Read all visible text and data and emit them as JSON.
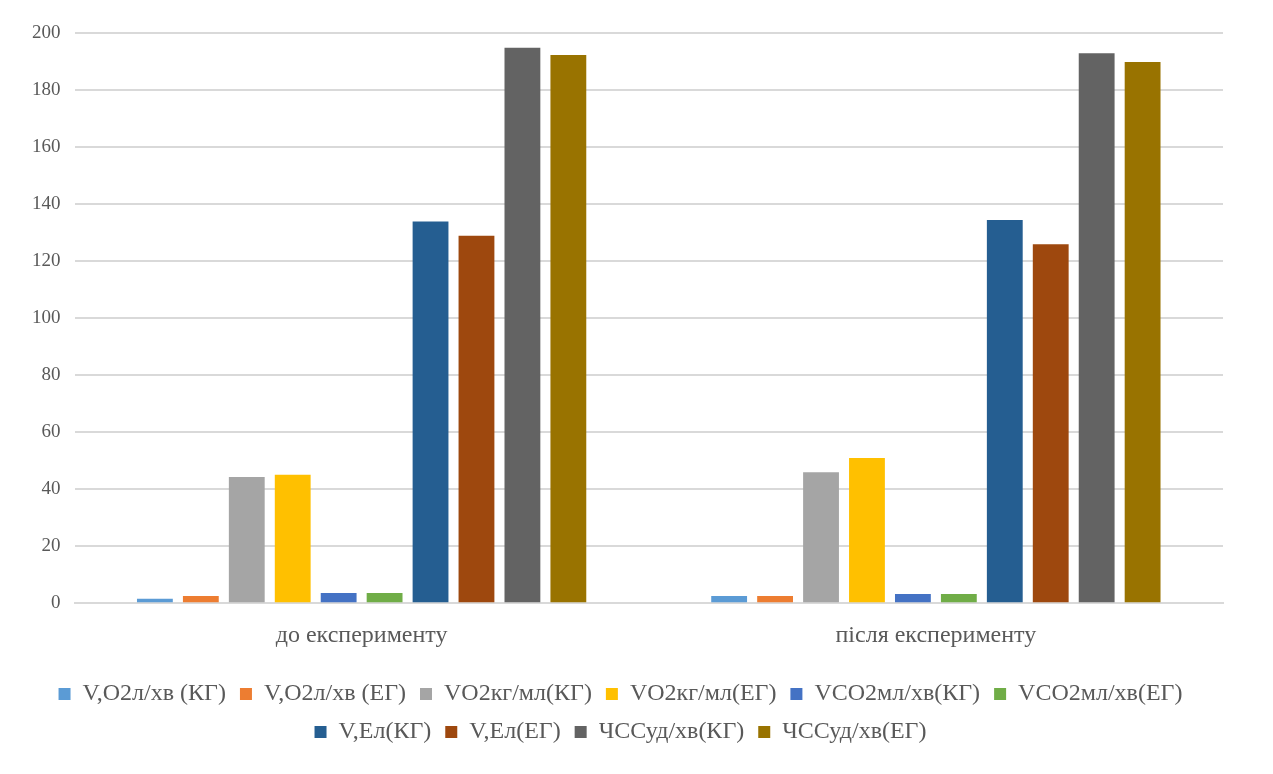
{
  "chart_data": {
    "type": "bar",
    "categories": [
      "до експерименту",
      "після експерименту"
    ],
    "series": [
      {
        "name": "V,O2л/хв (КГ)",
        "color": "#5b9bd5",
        "values": [
          1.6,
          2.5
        ]
      },
      {
        "name": "V,O2л/хв (ЕГ)",
        "color": "#ed7d31",
        "values": [
          2.5,
          2.5
        ]
      },
      {
        "name": "VO2кг/мл(КГ)",
        "color": "#a5a5a5",
        "values": [
          44.3,
          46
        ]
      },
      {
        "name": "VO2кг/мл(ЕГ)",
        "color": "#ffc000",
        "values": [
          45.1,
          51
        ]
      },
      {
        "name": "VCO2мл/хв(КГ)",
        "color": "#4472c4",
        "values": [
          3.6,
          3.2
        ]
      },
      {
        "name": "VCO2мл/хв(ЕГ)",
        "color": "#70ad47",
        "values": [
          3.6,
          3.2
        ]
      },
      {
        "name": "V,Ел(КГ)",
        "color": "#255e91",
        "values": [
          134,
          134.5
        ]
      },
      {
        "name": "V,Ел(ЕГ)",
        "color": "#9e480e",
        "values": [
          129,
          126
        ]
      },
      {
        "name": "ЧССуд/хв(КГ)",
        "color": "#636363",
        "values": [
          195,
          193
        ]
      },
      {
        "name": "ЧССуд/хв(ЕГ)",
        "color": "#997300",
        "values": [
          192.4,
          190
        ]
      }
    ],
    "ylim": [
      0,
      200
    ],
    "yticks": [
      0,
      20,
      40,
      60,
      80,
      100,
      120,
      140,
      160,
      180,
      200
    ],
    "grid": "y",
    "legend": "bottom"
  }
}
